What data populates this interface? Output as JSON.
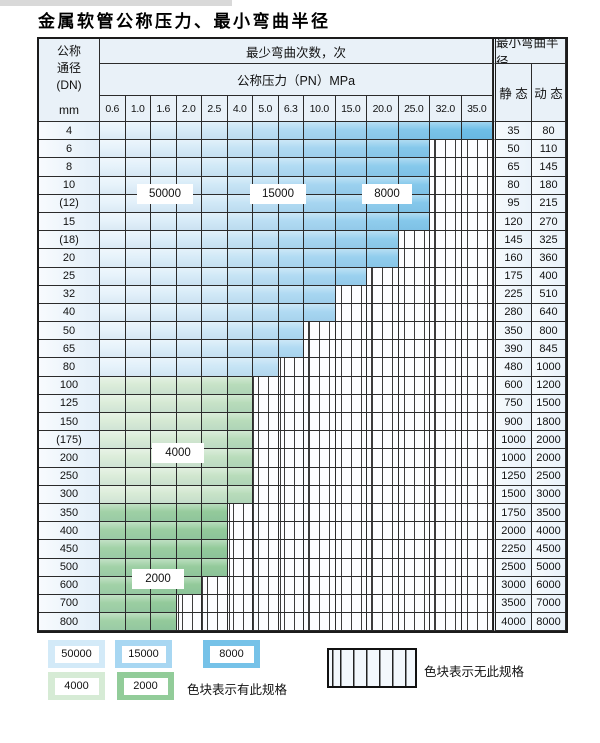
{
  "title": "金属软管公称压力、最小弯曲半径",
  "table": {
    "dn_header": [
      "公称",
      "通径",
      "(DN)",
      "mm"
    ],
    "cycles_header": "最少弯曲次数，次",
    "pressure_header": "公称压力（PN）MPa",
    "radius_header": "最小弯曲半径",
    "static_label": "静 态",
    "dynamic_label": "动 态",
    "pressure_columns": [
      "0.6",
      "1.0",
      "1.6",
      "2.0",
      "2.5",
      "4.0",
      "5.0",
      "6.3",
      "10.0",
      "15.0",
      "20.0",
      "25.0",
      "32.0",
      "35.0"
    ],
    "rows": [
      {
        "dn": "4",
        "colored_through": "35.0",
        "palette": "blue",
        "static": "35",
        "dynamic": "80"
      },
      {
        "dn": "6",
        "colored_through": "25.0",
        "palette": "blue",
        "static": "50",
        "dynamic": "110"
      },
      {
        "dn": "8",
        "colored_through": "25.0",
        "palette": "blue",
        "static": "65",
        "dynamic": "145"
      },
      {
        "dn": "10",
        "colored_through": "25.0",
        "palette": "blue",
        "static": "80",
        "dynamic": "180"
      },
      {
        "dn": "(12)",
        "colored_through": "25.0",
        "palette": "blue",
        "static": "95",
        "dynamic": "215"
      },
      {
        "dn": "15",
        "colored_through": "25.0",
        "palette": "blue",
        "static": "120",
        "dynamic": "270"
      },
      {
        "dn": "(18)",
        "colored_through": "20.0",
        "palette": "blue",
        "static": "145",
        "dynamic": "325"
      },
      {
        "dn": "20",
        "colored_through": "20.0",
        "palette": "blue",
        "static": "160",
        "dynamic": "360"
      },
      {
        "dn": "25",
        "colored_through": "15.0",
        "palette": "blue",
        "static": "175",
        "dynamic": "400"
      },
      {
        "dn": "32",
        "colored_through": "10.0",
        "palette": "blue",
        "static": "225",
        "dynamic": "510"
      },
      {
        "dn": "40",
        "colored_through": "10.0",
        "palette": "blue",
        "static": "280",
        "dynamic": "640"
      },
      {
        "dn": "50",
        "colored_through": "6.3",
        "palette": "blue",
        "static": "350",
        "dynamic": "800"
      },
      {
        "dn": "65",
        "colored_through": "6.3",
        "palette": "blue",
        "static": "390",
        "dynamic": "845"
      },
      {
        "dn": "80",
        "colored_through": "5.0",
        "palette": "blue",
        "static": "480",
        "dynamic": "1000"
      },
      {
        "dn": "100",
        "colored_through": "4.0",
        "palette": "green_light",
        "static": "600",
        "dynamic": "1200"
      },
      {
        "dn": "125",
        "colored_through": "4.0",
        "palette": "green_light",
        "static": "750",
        "dynamic": "1500"
      },
      {
        "dn": "150",
        "colored_through": "4.0",
        "palette": "green_light",
        "static": "900",
        "dynamic": "1800"
      },
      {
        "dn": "(175)",
        "colored_through": "4.0",
        "palette": "green_light",
        "static": "1000",
        "dynamic": "2000"
      },
      {
        "dn": "200",
        "colored_through": "4.0",
        "palette": "green_light",
        "static": "1000",
        "dynamic": "2000"
      },
      {
        "dn": "250",
        "colored_through": "4.0",
        "palette": "green_light",
        "static": "1250",
        "dynamic": "2500"
      },
      {
        "dn": "300",
        "colored_through": "4.0",
        "palette": "green_light",
        "static": "1500",
        "dynamic": "3000"
      },
      {
        "dn": "350",
        "colored_through": "2.5",
        "palette": "green_dark",
        "static": "1750",
        "dynamic": "3500"
      },
      {
        "dn": "400",
        "colored_through": "2.5",
        "palette": "green_dark",
        "static": "2000",
        "dynamic": "4000"
      },
      {
        "dn": "450",
        "colored_through": "2.5",
        "palette": "green_dark",
        "static": "2250",
        "dynamic": "4500"
      },
      {
        "dn": "500",
        "colored_through": "2.5",
        "palette": "green_dark",
        "static": "2500",
        "dynamic": "5000"
      },
      {
        "dn": "600",
        "colored_through": "2.0",
        "palette": "green_dark",
        "static": "3000",
        "dynamic": "6000"
      },
      {
        "dn": "700",
        "colored_through": "1.6",
        "palette": "green_dark",
        "static": "3500",
        "dynamic": "7000"
      },
      {
        "dn": "800",
        "colored_through": "1.6",
        "palette": "green_dark",
        "static": "4000",
        "dynamic": "8000"
      }
    ]
  },
  "overlays": [
    {
      "text": "50000"
    },
    {
      "text": "15000"
    },
    {
      "text": "8000"
    },
    {
      "text": "4000"
    },
    {
      "text": "2000"
    }
  ],
  "legend": {
    "items": [
      {
        "label": "50000",
        "color": "#d3eaf8"
      },
      {
        "label": "15000",
        "color": "#a8d7f2"
      },
      {
        "label": "8000",
        "color": "#76c2e8"
      },
      {
        "label": "4000",
        "color": "#d6ebd5"
      },
      {
        "label": "2000",
        "color": "#92cc99"
      }
    ],
    "has_spec_text": "色块表示有此规格",
    "no_spec_text": "色块表示无此规格"
  },
  "colors": {
    "grid_line": "#2b2b2b",
    "hatch_line": "#3c3c3c",
    "header_bg": "#e9f1f8",
    "blue_stops": [
      [
        0,
        "#e7f3fb"
      ],
      [
        0.3,
        "#d2e9f7"
      ],
      [
        0.62,
        "#a6d6f1"
      ],
      [
        1,
        "#6ebee7"
      ]
    ],
    "green_light_stops": [
      [
        0,
        "#dcedda"
      ],
      [
        0.7,
        "#cfe6cd"
      ],
      [
        1,
        "#b8dcba"
      ]
    ],
    "green_dark_stops": [
      [
        0,
        "#a2d2a7"
      ],
      [
        1,
        "#93ca9a"
      ]
    ]
  },
  "chart_data": {
    "type": "table",
    "title": "金属软管公称压力、最小弯曲半径",
    "xlabel": "公称压力（PN）MPa",
    "ylabel": "公称通径 (DN) mm",
    "pressure_columns_pn_mpa": [
      0.6,
      1.0,
      1.6,
      2.0,
      2.5,
      4.0,
      5.0,
      6.3,
      10.0,
      15.0,
      20.0,
      25.0,
      32.0,
      35.0
    ],
    "cycle_color_classes": [
      50000,
      15000,
      8000,
      4000,
      2000
    ],
    "rows": [
      {
        "dn": "4",
        "available_pn_max": 35.0,
        "static_radius": 35,
        "dynamic_radius": 80
      },
      {
        "dn": "6",
        "available_pn_max": 25.0,
        "static_radius": 50,
        "dynamic_radius": 110
      },
      {
        "dn": "8",
        "available_pn_max": 25.0,
        "static_radius": 65,
        "dynamic_radius": 145
      },
      {
        "dn": "10",
        "available_pn_max": 25.0,
        "static_radius": 80,
        "dynamic_radius": 180
      },
      {
        "dn": "(12)",
        "available_pn_max": 25.0,
        "static_radius": 95,
        "dynamic_radius": 215
      },
      {
        "dn": "15",
        "available_pn_max": 25.0,
        "static_radius": 120,
        "dynamic_radius": 270
      },
      {
        "dn": "(18)",
        "available_pn_max": 20.0,
        "static_radius": 145,
        "dynamic_radius": 325
      },
      {
        "dn": "20",
        "available_pn_max": 20.0,
        "static_radius": 160,
        "dynamic_radius": 360
      },
      {
        "dn": "25",
        "available_pn_max": 15.0,
        "static_radius": 175,
        "dynamic_radius": 400
      },
      {
        "dn": "32",
        "available_pn_max": 10.0,
        "static_radius": 225,
        "dynamic_radius": 510
      },
      {
        "dn": "40",
        "available_pn_max": 10.0,
        "static_radius": 280,
        "dynamic_radius": 640
      },
      {
        "dn": "50",
        "available_pn_max": 6.3,
        "static_radius": 350,
        "dynamic_radius": 800
      },
      {
        "dn": "65",
        "available_pn_max": 6.3,
        "static_radius": 390,
        "dynamic_radius": 845
      },
      {
        "dn": "80",
        "available_pn_max": 5.0,
        "static_radius": 480,
        "dynamic_radius": 1000
      },
      {
        "dn": "100",
        "available_pn_max": 4.0,
        "static_radius": 600,
        "dynamic_radius": 1200
      },
      {
        "dn": "125",
        "available_pn_max": 4.0,
        "static_radius": 750,
        "dynamic_radius": 1500
      },
      {
        "dn": "150",
        "available_pn_max": 4.0,
        "static_radius": 900,
        "dynamic_radius": 1800
      },
      {
        "dn": "(175)",
        "available_pn_max": 4.0,
        "static_radius": 1000,
        "dynamic_radius": 2000
      },
      {
        "dn": "200",
        "available_pn_max": 4.0,
        "static_radius": 1000,
        "dynamic_radius": 2000
      },
      {
        "dn": "250",
        "available_pn_max": 4.0,
        "static_radius": 1250,
        "dynamic_radius": 2500
      },
      {
        "dn": "300",
        "available_pn_max": 4.0,
        "static_radius": 1500,
        "dynamic_radius": 3000
      },
      {
        "dn": "350",
        "available_pn_max": 2.5,
        "static_radius": 1750,
        "dynamic_radius": 3500
      },
      {
        "dn": "400",
        "available_pn_max": 2.5,
        "static_radius": 2000,
        "dynamic_radius": 4000
      },
      {
        "dn": "450",
        "available_pn_max": 2.5,
        "static_radius": 2250,
        "dynamic_radius": 4500
      },
      {
        "dn": "500",
        "available_pn_max": 2.5,
        "static_radius": 2500,
        "dynamic_radius": 5000
      },
      {
        "dn": "600",
        "available_pn_max": 2.0,
        "static_radius": 3000,
        "dynamic_radius": 6000
      },
      {
        "dn": "700",
        "available_pn_max": 1.6,
        "static_radius": 3500,
        "dynamic_radius": 7000
      },
      {
        "dn": "800",
        "available_pn_max": 1.6,
        "static_radius": 4000,
        "dynamic_radius": 8000
      }
    ]
  }
}
